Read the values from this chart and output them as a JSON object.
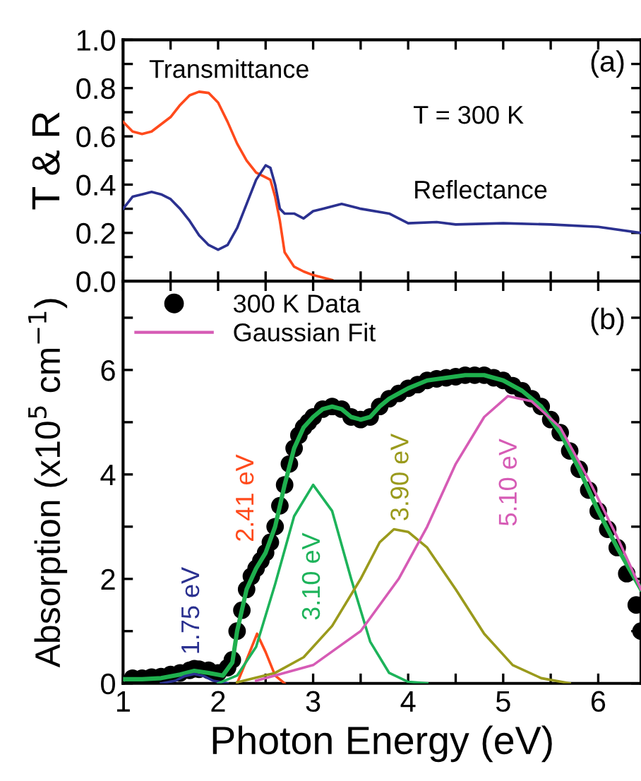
{
  "chart_data": [
    {
      "type": "line",
      "ylabel": "T & R",
      "xlim": [
        1,
        6.45
      ],
      "ylim": [
        0,
        1.0
      ],
      "xticks": [
        1,
        {
          "value": 1.5,
          "label": null
        },
        2,
        {
          "value": 2.5,
          "label": null
        },
        3,
        {
          "value": 3.5,
          "label": null
        },
        4,
        {
          "value": 4.5,
          "label": null
        },
        5,
        {
          "value": 5.5,
          "label": null
        },
        6
      ],
      "yticks": [
        {
          "value": 0,
          "label": "0.0"
        },
        {
          "value": 0.1,
          "label": null
        },
        0.2,
        {
          "value": 0.3,
          "label": null
        },
        0.4,
        {
          "value": 0.5,
          "label": null
        },
        0.6,
        {
          "value": 0.7,
          "label": null
        },
        0.8,
        {
          "value": 0.9,
          "label": null
        },
        {
          "value": 1,
          "label": "1.0"
        }
      ],
      "tick_labels": "y",
      "grid": false,
      "legend": false,
      "annotations": [
        "(a)",
        "T = 300 K"
      ],
      "series": [
        {
          "name": "Transmittance",
          "color": "#ff4a1c",
          "x": [
            1.0,
            1.1,
            1.2,
            1.3,
            1.4,
            1.5,
            1.6,
            1.7,
            1.8,
            1.9,
            2.0,
            2.1,
            2.2,
            2.3,
            2.4,
            2.5,
            2.55,
            2.6,
            2.65,
            2.7,
            2.8,
            2.9,
            3.0,
            3.2
          ],
          "values": [
            0.66,
            0.62,
            0.61,
            0.62,
            0.65,
            0.68,
            0.73,
            0.77,
            0.785,
            0.78,
            0.74,
            0.66,
            0.57,
            0.5,
            0.45,
            0.43,
            0.42,
            0.35,
            0.25,
            0.12,
            0.06,
            0.04,
            0.025,
            0.005
          ]
        },
        {
          "name": "Reflectance",
          "color": "#2b3190",
          "x": [
            1.0,
            1.1,
            1.2,
            1.3,
            1.4,
            1.5,
            1.6,
            1.7,
            1.8,
            1.9,
            2.0,
            2.1,
            2.2,
            2.3,
            2.4,
            2.5,
            2.55,
            2.6,
            2.65,
            2.7,
            2.8,
            2.9,
            3.0,
            3.1,
            3.3,
            3.5,
            3.8,
            4.0,
            4.3,
            4.5,
            5.0,
            5.5,
            6.0,
            6.45
          ],
          "values": [
            0.3,
            0.35,
            0.36,
            0.37,
            0.36,
            0.34,
            0.3,
            0.25,
            0.19,
            0.15,
            0.13,
            0.15,
            0.22,
            0.32,
            0.42,
            0.48,
            0.47,
            0.4,
            0.3,
            0.28,
            0.28,
            0.26,
            0.29,
            0.3,
            0.32,
            0.3,
            0.28,
            0.24,
            0.245,
            0.235,
            0.24,
            0.235,
            0.225,
            0.2
          ]
        }
      ]
    },
    {
      "type": "line",
      "xlabel": "Photon Energy (eV)",
      "ylabel": "Absorption (x10$^{5}$ cm$^{−1}$)",
      "xlim": [
        1,
        6.45
      ],
      "ylim": [
        0,
        7.7
      ],
      "xticks": [
        1,
        {
          "value": 1.5,
          "label": null
        },
        2,
        {
          "value": 2.5,
          "label": null
        },
        3,
        {
          "value": 3.5,
          "label": null
        },
        4,
        {
          "value": 4.5,
          "label": null
        },
        5,
        {
          "value": 5.5,
          "label": null
        },
        6
      ],
      "yticks": [
        0,
        {
          "value": 1,
          "label": null
        },
        2,
        {
          "value": 3,
          "label": null
        },
        4,
        {
          "value": 5,
          "label": null
        },
        6,
        {
          "value": 7,
          "label": null
        }
      ],
      "grid": false,
      "legend": "top left",
      "annotations": [
        "(b)",
        "1.75 eV",
        "2.41 eV",
        "3.10 eV",
        "3.90 eV",
        "5.10 eV"
      ],
      "series": [
        {
          "name": "300 K Data",
          "type": "scatter",
          "marker": "circle",
          "color": "#000000",
          "x": [
            1.1,
            1.2,
            1.3,
            1.4,
            1.5,
            1.6,
            1.7,
            1.75,
            1.8,
            1.9,
            2.0,
            2.1,
            2.15,
            2.2,
            2.25,
            2.3,
            2.35,
            2.4,
            2.45,
            2.5,
            2.55,
            2.6,
            2.65,
            2.7,
            2.75,
            2.8,
            2.85,
            2.9,
            2.95,
            3.0,
            3.1,
            3.2,
            3.3,
            3.4,
            3.5,
            3.6,
            3.7,
            3.8,
            3.9,
            4.0,
            4.1,
            4.2,
            4.3,
            4.4,
            4.5,
            4.6,
            4.7,
            4.8,
            4.9,
            5.0,
            5.1,
            5.2,
            5.3,
            5.4,
            5.5,
            5.6,
            5.7,
            5.8,
            5.9,
            6.0,
            6.1,
            6.2,
            6.3,
            6.4,
            6.45
          ],
          "values": [
            0.1,
            0.1,
            0.12,
            0.13,
            0.17,
            0.2,
            0.25,
            0.28,
            0.27,
            0.25,
            0.2,
            0.3,
            0.45,
            1.0,
            1.4,
            1.8,
            2.05,
            2.2,
            2.35,
            2.5,
            2.7,
            3.0,
            3.4,
            3.8,
            4.2,
            4.5,
            4.75,
            4.9,
            5.0,
            5.1,
            5.25,
            5.3,
            5.25,
            5.1,
            5.05,
            5.1,
            5.3,
            5.45,
            5.55,
            5.65,
            5.72,
            5.8,
            5.83,
            5.85,
            5.87,
            5.9,
            5.9,
            5.9,
            5.85,
            5.8,
            5.7,
            5.6,
            5.45,
            5.3,
            5.05,
            4.8,
            4.45,
            4.1,
            3.7,
            3.3,
            2.95,
            2.6,
            2.1,
            1.5,
            1.0
          ]
        },
        {
          "color": "#1fb04e",
          "x": [
            1.0,
            1.2,
            1.4,
            1.6,
            1.75,
            1.9,
            2.05,
            2.15,
            2.2,
            2.3,
            2.4,
            2.5,
            2.6,
            2.7,
            2.8,
            2.9,
            3.0,
            3.1,
            3.2,
            3.3,
            3.4,
            3.5,
            3.6,
            3.7,
            3.8,
            3.9,
            4.0,
            4.2,
            4.4,
            4.6,
            4.8,
            5.0,
            5.2,
            5.4,
            5.6,
            5.8,
            6.0,
            6.2,
            6.45
          ],
          "values": [
            0.08,
            0.08,
            0.1,
            0.17,
            0.24,
            0.2,
            0.15,
            0.4,
            1.0,
            1.8,
            2.2,
            2.5,
            3.0,
            3.8,
            4.5,
            4.9,
            5.1,
            5.25,
            5.3,
            5.25,
            5.1,
            5.05,
            5.1,
            5.3,
            5.45,
            5.55,
            5.65,
            5.8,
            5.85,
            5.9,
            5.9,
            5.8,
            5.6,
            5.3,
            4.8,
            4.1,
            3.3,
            2.6,
            1.8
          ]
        },
        {
          "color": "#2b3190",
          "x": [
            1.4,
            1.55,
            1.65,
            1.75,
            1.85,
            1.95,
            2.1
          ],
          "values": [
            0,
            0.05,
            0.14,
            0.18,
            0.14,
            0.05,
            0
          ]
        },
        {
          "color": "#ff4a1c",
          "x": [
            2.2,
            2.3,
            2.41,
            2.5,
            2.6,
            2.7
          ],
          "values": [
            0,
            0.45,
            0.95,
            0.6,
            0.15,
            0
          ]
        },
        {
          "color": "#1db35a",
          "x": [
            2.0,
            2.2,
            2.4,
            2.6,
            2.8,
            3.0,
            3.2,
            3.4,
            3.6,
            3.8,
            4.0,
            4.2
          ],
          "values": [
            0,
            0.15,
            0.7,
            1.9,
            3.2,
            3.8,
            3.3,
            2.0,
            0.8,
            0.2,
            0.03,
            0
          ]
        },
        {
          "color": "#9a9a1c",
          "x": [
            2.2,
            2.6,
            2.9,
            3.2,
            3.5,
            3.7,
            3.85,
            4.0,
            4.2,
            4.5,
            4.8,
            5.1,
            5.4,
            5.7
          ],
          "values": [
            0.02,
            0.2,
            0.5,
            1.1,
            2.0,
            2.7,
            2.95,
            2.9,
            2.6,
            1.8,
            0.95,
            0.35,
            0.1,
            0
          ]
        },
        {
          "name": "Gaussian Fit",
          "color": "#d65bb5",
          "x": [
            2.4,
            3.0,
            3.5,
            3.9,
            4.2,
            4.5,
            4.8,
            5.05,
            5.3,
            5.6,
            5.9,
            6.2,
            6.45
          ],
          "values": [
            0.05,
            0.35,
            1.0,
            2.0,
            3.0,
            4.2,
            5.1,
            5.5,
            5.4,
            4.9,
            3.9,
            2.8,
            1.8
          ]
        }
      ]
    }
  ]
}
